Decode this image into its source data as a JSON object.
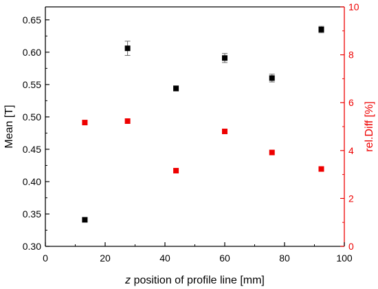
{
  "chart_data": {
    "type": "scatter",
    "x": [
      13.2,
      27.5,
      43.7,
      60.0,
      75.8,
      92.3
    ],
    "xlabel_italic": "z",
    "xlabel_rest": " position of profile line [mm]",
    "xlim": [
      0,
      100
    ],
    "xticks": [
      0,
      20,
      40,
      60,
      80,
      100
    ],
    "x_tick_labels": [
      "0",
      "20",
      "40",
      "60",
      "80",
      "100"
    ],
    "ylabel_left": "Mean [T]",
    "ylim_left": [
      0.3,
      0.67
    ],
    "yticks_left": [
      0.3,
      0.35,
      0.4,
      0.45,
      0.5,
      0.55,
      0.6,
      0.65
    ],
    "y_tick_labels_left": [
      "0.30",
      "0.35",
      "0.40",
      "0.45",
      "0.50",
      "0.55",
      "0.60",
      "0.65"
    ],
    "ylabel_right": "rel.Diff [%]",
    "ylim_right": [
      0,
      10
    ],
    "yticks_right": [
      0,
      2,
      4,
      6,
      8,
      10
    ],
    "y_tick_labels_right": [
      "0",
      "2",
      "4",
      "6",
      "8",
      "10"
    ],
    "series": [
      {
        "axis": "left",
        "marker": "square",
        "color": "#000000",
        "values": [
          0.341,
          0.606,
          0.544,
          0.591,
          0.56,
          0.635
        ],
        "errors": [
          0.003,
          0.011,
          0.004,
          0.007,
          0.006,
          0.005
        ]
      },
      {
        "axis": "right",
        "marker": "square",
        "color": "#ee0000",
        "values": [
          5.17,
          5.23,
          3.16,
          4.8,
          3.92,
          3.23
        ]
      }
    ],
    "grid": false,
    "legend": "none"
  },
  "colors": {
    "axis": "#000000",
    "right_axis": "#ee0000"
  }
}
